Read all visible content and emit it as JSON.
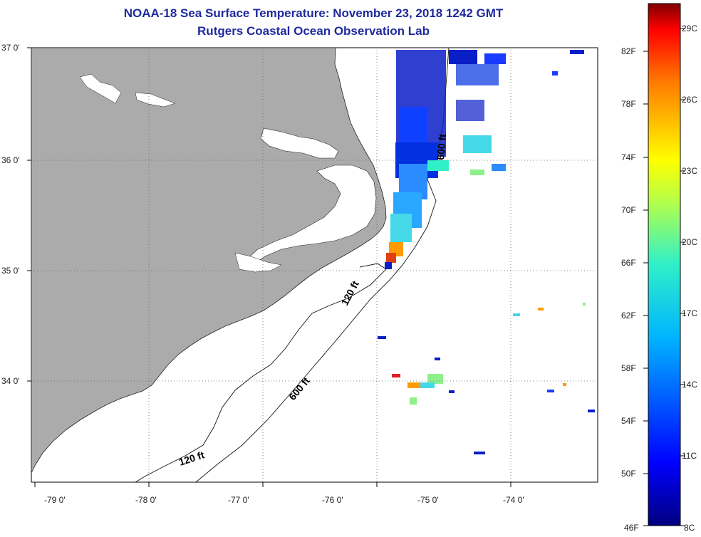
{
  "header": {
    "title": "NOAA-18 Sea Surface Temperature:  November 23, 2018 1242 GMT",
    "subtitle": "Rutgers Coastal Ocean Observation Lab"
  },
  "axes": {
    "lat_ticks": [
      {
        "value": 37,
        "label": "37 0'"
      },
      {
        "value": 36,
        "label": "36 0'"
      },
      {
        "value": 35,
        "label": "35 0'"
      },
      {
        "value": 34,
        "label": "34 0'"
      }
    ],
    "lon_ticks": [
      {
        "value": -79,
        "label": "-79 0'"
      },
      {
        "value": -78,
        "label": "-78 0'"
      },
      {
        "value": -77,
        "label": "-77 0'"
      },
      {
        "value": -76,
        "label": "-76 0'"
      },
      {
        "value": -75,
        "label": "-75 0'"
      },
      {
        "value": -74,
        "label": "-74 0'"
      }
    ]
  },
  "depth_contours": [
    {
      "label": "120 ft"
    },
    {
      "label": "600 ft"
    },
    {
      "label": "600 ft"
    },
    {
      "label": "120 ft"
    }
  ],
  "colorbar": {
    "fahrenheit": [
      "82F",
      "78F",
      "74F",
      "70F",
      "66F",
      "62F",
      "58F",
      "54F",
      "50F",
      "46F"
    ],
    "celsius": [
      "29C",
      "26C",
      "23C",
      "20C",
      "17C",
      "14C",
      "11C",
      "8C"
    ]
  },
  "colors": {
    "land": "#ababab",
    "title": "#1f2a9e"
  }
}
